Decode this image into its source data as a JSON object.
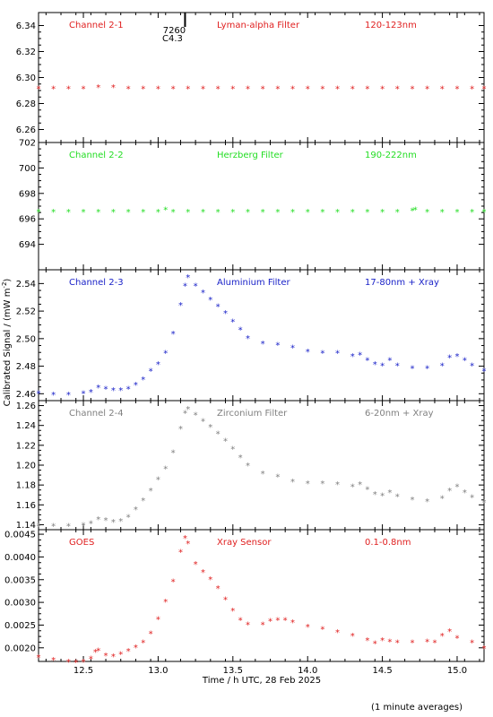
{
  "figure": {
    "ylabel": "Calibrated Signal / (mW m",
    "ylabel_sup": "-2",
    "ylabel_end": ")",
    "xlabel": "Time / h UTC, 28 Feb 2025",
    "footnote": "(1 minute averages)",
    "marker_text_1": "7260",
    "marker_text_2": "C4.3",
    "xlim": [
      12.2,
      15.18
    ],
    "xticks": [
      "12.5",
      "13.0",
      "13.5",
      "14.0",
      "14.5",
      "15.0"
    ]
  },
  "chart_data": [
    {
      "type": "scatter",
      "channel": "Channel 2-1",
      "filter": "Lyman-alpha Filter",
      "band": "120-123nm",
      "color": "#e02020",
      "ylim": [
        6.25,
        6.35
      ],
      "yticks": [
        "6.26",
        "6.28",
        "6.30",
        "6.32",
        "6.34"
      ],
      "x": [
        12.2,
        12.3,
        12.4,
        12.5,
        12.6,
        12.7,
        12.8,
        12.9,
        13.0,
        13.1,
        13.2,
        13.3,
        13.4,
        13.5,
        13.6,
        13.7,
        13.8,
        13.9,
        14.0,
        14.1,
        14.2,
        14.3,
        14.4,
        14.5,
        14.6,
        14.7,
        14.8,
        14.9,
        15.0,
        15.1,
        15.18
      ],
      "values": [
        6.291,
        6.291,
        6.291,
        6.291,
        6.292,
        6.292,
        6.291,
        6.291,
        6.291,
        6.291,
        6.291,
        6.291,
        6.291,
        6.291,
        6.291,
        6.291,
        6.291,
        6.291,
        6.291,
        6.291,
        6.291,
        6.291,
        6.291,
        6.291,
        6.291,
        6.291,
        6.291,
        6.291,
        6.291,
        6.291,
        6.291
      ]
    },
    {
      "type": "scatter",
      "channel": "Channel 2-2",
      "filter": "Herzberg Filter",
      "band": "190-222nm",
      "color": "#22dd22",
      "ylim": [
        692.0,
        702.0
      ],
      "yticks": [
        "694",
        "696",
        "698",
        "700",
        "702"
      ],
      "x": [
        12.2,
        12.3,
        12.4,
        12.5,
        12.6,
        12.7,
        12.8,
        12.9,
        13.0,
        13.05,
        13.1,
        13.2,
        13.3,
        13.4,
        13.5,
        13.6,
        13.7,
        13.8,
        13.9,
        14.0,
        14.1,
        14.2,
        14.3,
        14.4,
        14.5,
        14.6,
        14.7,
        14.72,
        14.8,
        14.9,
        15.0,
        15.1,
        15.18
      ],
      "values": [
        696.5,
        696.5,
        696.5,
        696.5,
        696.5,
        696.5,
        696.5,
        696.5,
        696.5,
        696.7,
        696.5,
        696.5,
        696.5,
        696.5,
        696.5,
        696.5,
        696.5,
        696.5,
        696.5,
        696.5,
        696.5,
        696.5,
        696.5,
        696.5,
        696.5,
        696.5,
        696.6,
        696.7,
        696.5,
        696.5,
        696.5,
        696.5,
        696.5
      ]
    },
    {
      "type": "scatter",
      "channel": "Channel 2-3",
      "filter": "Aluminium Filter",
      "band": "17-80nm + Xray",
      "color": "#1a22c8",
      "ylim": [
        2.455,
        2.55
      ],
      "yticks": [
        "2.46",
        "2.48",
        "2.50",
        "2.52",
        "2.54"
      ],
      "x": [
        12.2,
        12.3,
        12.4,
        12.5,
        12.55,
        12.6,
        12.65,
        12.7,
        12.75,
        12.8,
        12.85,
        12.9,
        12.95,
        13.0,
        13.05,
        13.1,
        13.15,
        13.18,
        13.2,
        13.25,
        13.3,
        13.35,
        13.4,
        13.45,
        13.5,
        13.55,
        13.6,
        13.7,
        13.8,
        13.9,
        14.0,
        14.1,
        14.2,
        14.3,
        14.35,
        14.4,
        14.45,
        14.5,
        14.55,
        14.6,
        14.7,
        14.8,
        14.9,
        14.95,
        15.0,
        15.05,
        15.1,
        15.18
      ],
      "values": [
        2.46,
        2.459,
        2.459,
        2.46,
        2.461,
        2.464,
        2.463,
        2.462,
        2.462,
        2.463,
        2.466,
        2.47,
        2.476,
        2.481,
        2.489,
        2.503,
        2.524,
        2.538,
        2.544,
        2.538,
        2.533,
        2.528,
        2.523,
        2.518,
        2.512,
        2.506,
        2.5,
        2.496,
        2.495,
        2.493,
        2.49,
        2.489,
        2.489,
        2.487,
        2.488,
        2.484,
        2.481,
        2.48,
        2.484,
        2.48,
        2.478,
        2.478,
        2.48,
        2.486,
        2.487,
        2.484,
        2.48,
        2.476
      ]
    },
    {
      "type": "scatter",
      "channel": "Channel 2-4",
      "filter": "Zirconium Filter",
      "band": "6-20nm + Xray",
      "color": "#808080",
      "ylim": [
        1.135,
        1.265
      ],
      "yticks": [
        "1.14",
        "1.16",
        "1.18",
        "1.20",
        "1.22",
        "1.24",
        "1.26"
      ],
      "x": [
        12.2,
        12.3,
        12.4,
        12.5,
        12.55,
        12.6,
        12.65,
        12.7,
        12.75,
        12.8,
        12.85,
        12.9,
        12.95,
        13.0,
        13.05,
        13.1,
        13.15,
        13.18,
        13.2,
        13.25,
        13.3,
        13.35,
        13.4,
        13.45,
        13.5,
        13.55,
        13.6,
        13.7,
        13.8,
        13.9,
        14.0,
        14.1,
        14.2,
        14.3,
        14.35,
        14.4,
        14.45,
        14.5,
        14.55,
        14.6,
        14.7,
        14.8,
        14.9,
        14.95,
        15.0,
        15.05,
        15.1,
        15.18
      ],
      "values": [
        1.138,
        1.138,
        1.138,
        1.139,
        1.141,
        1.145,
        1.144,
        1.142,
        1.143,
        1.147,
        1.155,
        1.164,
        1.174,
        1.185,
        1.196,
        1.212,
        1.236,
        1.252,
        1.256,
        1.25,
        1.244,
        1.238,
        1.231,
        1.224,
        1.216,
        1.207,
        1.199,
        1.191,
        1.188,
        1.183,
        1.181,
        1.181,
        1.18,
        1.178,
        1.18,
        1.175,
        1.17,
        1.169,
        1.172,
        1.168,
        1.165,
        1.163,
        1.166,
        1.174,
        1.178,
        1.172,
        1.167,
        1.162
      ]
    },
    {
      "type": "scatter",
      "channel": "GOES",
      "filter": "Xray Sensor",
      "band": "0.1-0.8nm",
      "color": "#e02020",
      "ylim": [
        0.0017,
        0.0046
      ],
      "yticks": [
        "0.0020",
        "0.0025",
        "0.0030",
        "0.0035",
        "0.0040",
        "0.0045"
      ],
      "x": [
        12.2,
        12.3,
        12.4,
        12.45,
        12.5,
        12.55,
        12.58,
        12.6,
        12.65,
        12.7,
        12.75,
        12.8,
        12.85,
        12.9,
        12.95,
        13.0,
        13.05,
        13.1,
        13.15,
        13.18,
        13.2,
        13.25,
        13.3,
        13.35,
        13.4,
        13.45,
        13.5,
        13.55,
        13.6,
        13.7,
        13.75,
        13.8,
        13.85,
        13.9,
        14.0,
        14.1,
        14.2,
        14.3,
        14.4,
        14.45,
        14.5,
        14.55,
        14.6,
        14.7,
        14.8,
        14.85,
        14.9,
        14.95,
        15.0,
        15.1,
        15.18
      ],
      "values": [
        0.00178,
        0.00172,
        0.00168,
        0.00167,
        0.00168,
        0.00175,
        0.0019,
        0.00193,
        0.00182,
        0.0018,
        0.00185,
        0.00192,
        0.002,
        0.0021,
        0.0023,
        0.00262,
        0.003,
        0.00345,
        0.0041,
        0.0044,
        0.00428,
        0.00383,
        0.00365,
        0.0035,
        0.0033,
        0.00305,
        0.0028,
        0.0026,
        0.0025,
        0.0025,
        0.00258,
        0.0026,
        0.0026,
        0.00255,
        0.00245,
        0.0024,
        0.00233,
        0.00225,
        0.00215,
        0.00208,
        0.00215,
        0.00212,
        0.0021,
        0.0021,
        0.00212,
        0.0021,
        0.00225,
        0.00235,
        0.0022,
        0.0021,
        0.00198
      ]
    }
  ]
}
